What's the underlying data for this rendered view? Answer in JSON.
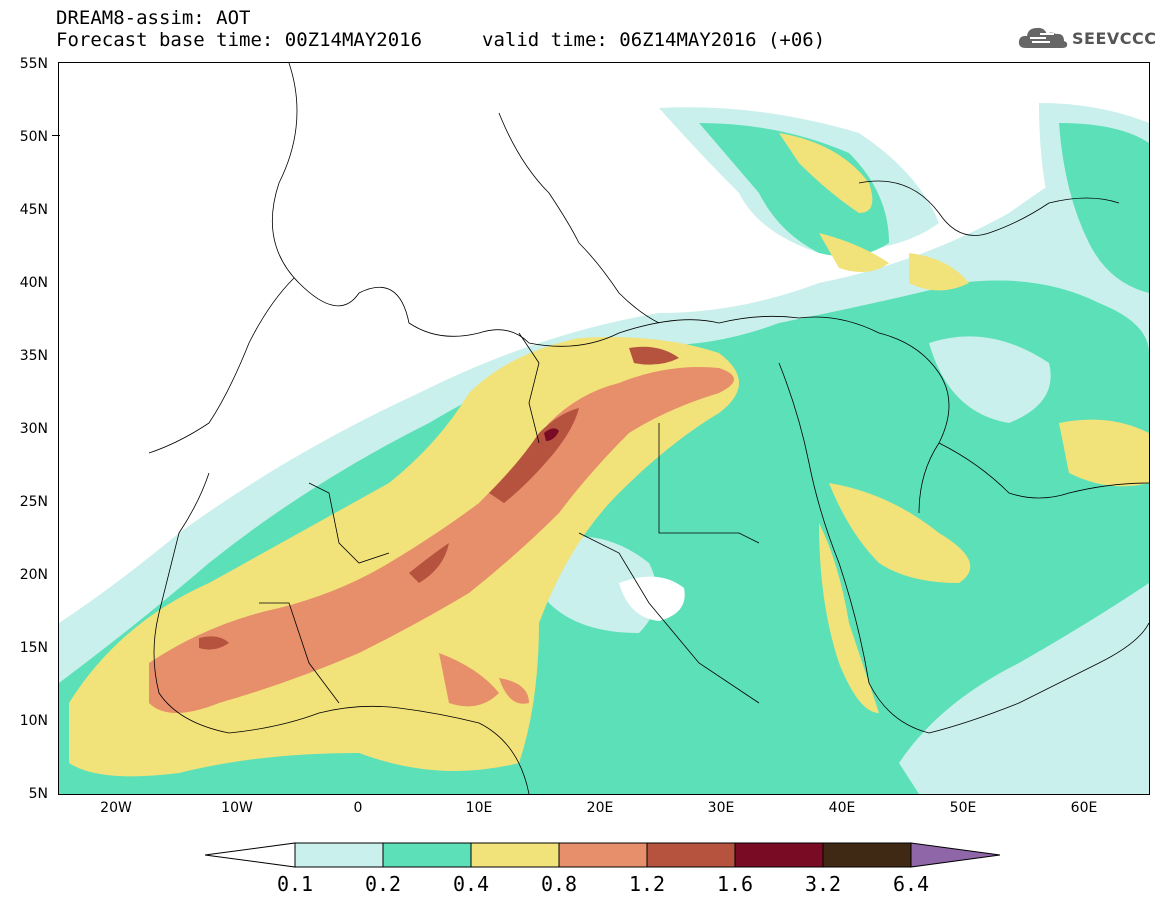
{
  "header": {
    "title_line1": "DREAM8-assim: AOT",
    "title_line2_left": "Forecast base time: 00Z14MAY2016",
    "title_line2_right": "valid time: 06Z14MAY2016 (+06)"
  },
  "logo": {
    "text": "SEEVCCC",
    "icon": "cloud-icon"
  },
  "map": {
    "lat_labels": [
      "55N",
      "50N",
      "45N",
      "40N",
      "35N",
      "30N",
      "25N",
      "20N",
      "15N",
      "10N",
      "5N"
    ],
    "lon_labels": [
      "20W",
      "10W",
      "0",
      "10E",
      "20E",
      "30E",
      "40E",
      "50E",
      "60E"
    ],
    "extent": {
      "lon_min": -25,
      "lon_max": 65,
      "lat_min": 5,
      "lat_max": 55
    }
  },
  "colorbar": {
    "labels": [
      "0.1",
      "0.2",
      "0.4",
      "0.8",
      "1.2",
      "1.6",
      "3.2",
      "6.4"
    ],
    "colors": [
      "#ffffff",
      "#c9f0ec",
      "#5ce0b8",
      "#f2e27a",
      "#e78e6a",
      "#b5533f",
      "#7a0b24",
      "#3f2814",
      "#8f66a8"
    ]
  },
  "palette": {
    "c1": "#c9f0ec",
    "c2": "#5ce0b8",
    "c3": "#f2e27a",
    "c4": "#e78e6a",
    "c5": "#b5533f",
    "c6": "#7a0b24"
  }
}
